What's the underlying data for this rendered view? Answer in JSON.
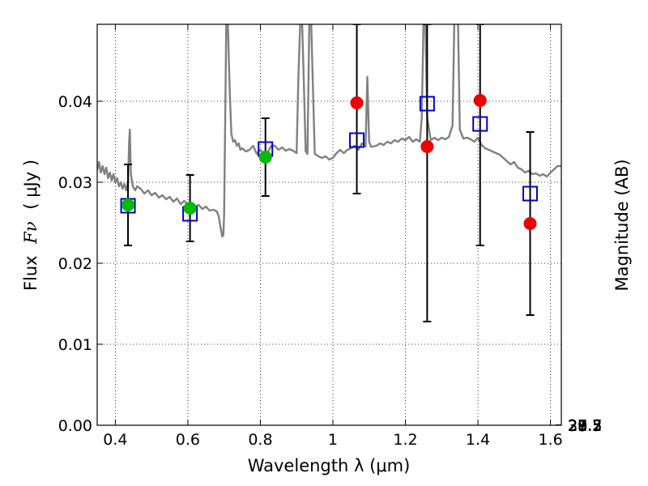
{
  "chart_data": {
    "type": "scatter",
    "xlabel": "Wavelength  λ (μm)",
    "ylabel_text": "Flux",
    "ylabel_symbol": "Fν",
    "ylabel_unit": "( μJy )",
    "y2label": "Magnitude (AB)",
    "xlim": [
      0.35,
      1.63
    ],
    "ylim": [
      0.0,
      0.0495
    ],
    "grid": true,
    "x_ticks": [
      {
        "value": 0.4,
        "label": "0.4"
      },
      {
        "value": 0.6,
        "label": "0.6"
      },
      {
        "value": 0.8,
        "label": "0.8"
      },
      {
        "value": 1.0,
        "label": "1"
      },
      {
        "value": 1.2,
        "label": "1.2"
      },
      {
        "value": 1.4,
        "label": "1.4"
      },
      {
        "value": 1.6,
        "label": "1.6"
      }
    ],
    "y_ticks": [
      {
        "value": 0.0,
        "label": "0.00"
      },
      {
        "value": 0.01,
        "label": "0.01"
      },
      {
        "value": 0.02,
        "label": "0.02"
      },
      {
        "value": 0.03,
        "label": "0.03"
      },
      {
        "value": 0.04,
        "label": "0.04"
      }
    ],
    "y2_ticks": [
      {
        "value": 27.2,
        "label": "27.2"
      },
      {
        "value": 27.3,
        "label": "27.3"
      },
      {
        "value": 27.5,
        "label": "27.5"
      },
      {
        "value": 27.7,
        "label": "27.7"
      },
      {
        "value": 28.0,
        "label": "28"
      },
      {
        "value": 28.2,
        "label": "28.2"
      },
      {
        "value": 28.5,
        "label": "28.5"
      },
      {
        "value": 29.0,
        "label": "29"
      },
      {
        "value": 29.5,
        "label": "29.5"
      },
      {
        "value": 30.0,
        "label": "30"
      },
      {
        "value": 31.0,
        "label": "31"
      }
    ],
    "mag_zero_point": 23.9,
    "model_spectrum": {
      "color": "#808080",
      "x": [
        0.35,
        0.355,
        0.36,
        0.365,
        0.37,
        0.375,
        0.38,
        0.385,
        0.39,
        0.395,
        0.4,
        0.405,
        0.41,
        0.415,
        0.42,
        0.425,
        0.43,
        0.435,
        0.438,
        0.44,
        0.443,
        0.448,
        0.455,
        0.46,
        0.47,
        0.48,
        0.49,
        0.5,
        0.51,
        0.52,
        0.53,
        0.54,
        0.55,
        0.56,
        0.57,
        0.58,
        0.59,
        0.6,
        0.61,
        0.62,
        0.63,
        0.64,
        0.65,
        0.66,
        0.67,
        0.68,
        0.685,
        0.69,
        0.695,
        0.698,
        0.7,
        0.702,
        0.704,
        0.706,
        0.708,
        0.71,
        0.715,
        0.72,
        0.725,
        0.73,
        0.735,
        0.74,
        0.745,
        0.75,
        0.76,
        0.77,
        0.78,
        0.79,
        0.8,
        0.81,
        0.82,
        0.83,
        0.84,
        0.85,
        0.86,
        0.87,
        0.88,
        0.89,
        0.9,
        0.905,
        0.91,
        0.915,
        0.92,
        0.925,
        0.93,
        0.935,
        0.94,
        0.95,
        0.96,
        0.97,
        0.98,
        0.99,
        1.0,
        1.01,
        1.02,
        1.03,
        1.04,
        1.05,
        1.06,
        1.07,
        1.08,
        1.09,
        1.095,
        1.1,
        1.105,
        1.11,
        1.12,
        1.13,
        1.14,
        1.15,
        1.16,
        1.17,
        1.18,
        1.19,
        1.2,
        1.21,
        1.22,
        1.23,
        1.24,
        1.245,
        1.25,
        1.255,
        1.26,
        1.27,
        1.28,
        1.29,
        1.3,
        1.31,
        1.32,
        1.33,
        1.335,
        1.34,
        1.345,
        1.35,
        1.36,
        1.37,
        1.38,
        1.39,
        1.4,
        1.41,
        1.42,
        1.43,
        1.44,
        1.45,
        1.46,
        1.47,
        1.48,
        1.49,
        1.5,
        1.51,
        1.52,
        1.53,
        1.54,
        1.55,
        1.56,
        1.57,
        1.58,
        1.59,
        1.6,
        1.61,
        1.62,
        1.63
      ],
      "y": [
        0.0315,
        0.0325,
        0.0312,
        0.032,
        0.031,
        0.0318,
        0.0305,
        0.0312,
        0.0302,
        0.031,
        0.03,
        0.0305,
        0.0295,
        0.03,
        0.0292,
        0.0298,
        0.029,
        0.03,
        0.035,
        0.0365,
        0.031,
        0.0295,
        0.029,
        0.0295,
        0.0292,
        0.0286,
        0.029,
        0.0284,
        0.0287,
        0.0281,
        0.0284,
        0.0279,
        0.0282,
        0.0276,
        0.028,
        0.0273,
        0.0277,
        0.0272,
        0.0274,
        0.027,
        0.0272,
        0.0267,
        0.027,
        0.0265,
        0.0266,
        0.0264,
        0.0258,
        0.0245,
        0.0233,
        0.0235,
        0.026,
        0.034,
        0.042,
        0.05,
        0.05,
        0.05,
        0.042,
        0.036,
        0.035,
        0.0352,
        0.0345,
        0.0348,
        0.034,
        0.0342,
        0.0338,
        0.034,
        0.0345,
        0.0335,
        0.034,
        0.0335,
        0.0337,
        0.0345,
        0.0345,
        0.034,
        0.0343,
        0.0339,
        0.0341,
        0.0339,
        0.0336,
        0.043,
        0.05,
        0.05,
        0.042,
        0.0338,
        0.0335,
        0.05,
        0.05,
        0.0335,
        0.0332,
        0.033,
        0.0332,
        0.0328,
        0.033,
        0.0336,
        0.034,
        0.0336,
        0.034,
        0.0342,
        0.0345,
        0.034,
        0.0348,
        0.0344,
        0.043,
        0.035,
        0.0344,
        0.0344,
        0.0345,
        0.0348,
        0.0346,
        0.035,
        0.0348,
        0.0352,
        0.035,
        0.0354,
        0.0352,
        0.0356,
        0.035,
        0.0353,
        0.035,
        0.038,
        0.05,
        0.05,
        0.038,
        0.0352,
        0.0355,
        0.0352,
        0.0355,
        0.0353,
        0.0356,
        0.037,
        0.05,
        0.05,
        0.05,
        0.0365,
        0.0354,
        0.0355,
        0.0353,
        0.035,
        0.0355,
        0.0346,
        0.0342,
        0.034,
        0.0338,
        0.0336,
        0.0334,
        0.033,
        0.0326,
        0.0322,
        0.0325,
        0.0318,
        0.0316,
        0.0312,
        0.0314,
        0.031,
        0.0311,
        0.0308,
        0.031,
        0.0307,
        0.0312,
        0.0316,
        0.032,
        0.032
      ]
    },
    "series": [
      {
        "kind": "observed_errorbars",
        "color": "#000000",
        "points": [
          {
            "x": 0.435,
            "low": 0.0222,
            "high": 0.0322
          },
          {
            "x": 0.606,
            "low": 0.0227,
            "high": 0.0309
          },
          {
            "x": 0.814,
            "low": 0.0283,
            "high": 0.0379
          },
          {
            "x": 1.066,
            "low": 0.0286,
            "high": 0.0495
          },
          {
            "x": 1.26,
            "low": 0.0128,
            "high": 0.0495
          },
          {
            "x": 1.406,
            "low": 0.0222,
            "high": 0.0495
          },
          {
            "x": 1.544,
            "low": 0.0136,
            "high": 0.0362
          }
        ]
      },
      {
        "kind": "model_squares",
        "color": "#0000cc",
        "points": [
          {
            "x": 0.435,
            "y": 0.0271
          },
          {
            "x": 0.606,
            "y": 0.0261
          },
          {
            "x": 0.814,
            "y": 0.0341
          },
          {
            "x": 1.066,
            "y": 0.0352
          },
          {
            "x": 1.26,
            "y": 0.0397
          },
          {
            "x": 1.406,
            "y": 0.0372
          },
          {
            "x": 1.544,
            "y": 0.0286
          }
        ]
      },
      {
        "kind": "measured_circles",
        "points": [
          {
            "x": 0.435,
            "y": 0.0272,
            "color": "#00bb00"
          },
          {
            "x": 0.606,
            "y": 0.0268,
            "color": "#00bb00"
          },
          {
            "x": 0.814,
            "y": 0.0331,
            "color": "#00bb00"
          },
          {
            "x": 1.066,
            "y": 0.0398,
            "color": "#ee0000"
          },
          {
            "x": 1.26,
            "y": 0.0344,
            "color": "#ee0000"
          },
          {
            "x": 1.406,
            "y": 0.0401,
            "color": "#ee0000"
          },
          {
            "x": 1.544,
            "y": 0.0249,
            "color": "#ee0000"
          }
        ]
      }
    ]
  }
}
